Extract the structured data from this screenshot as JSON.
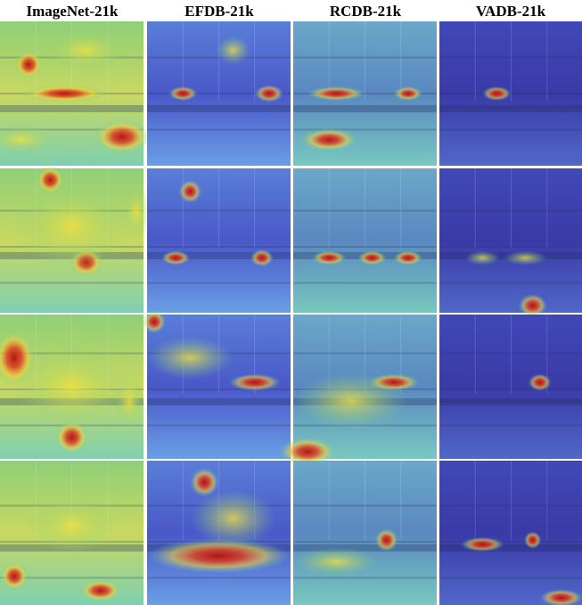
{
  "columns": [
    "ImageNet-21k",
    "EFDB-21k",
    "RCDB-21k",
    "VADB-21k"
  ]
}
